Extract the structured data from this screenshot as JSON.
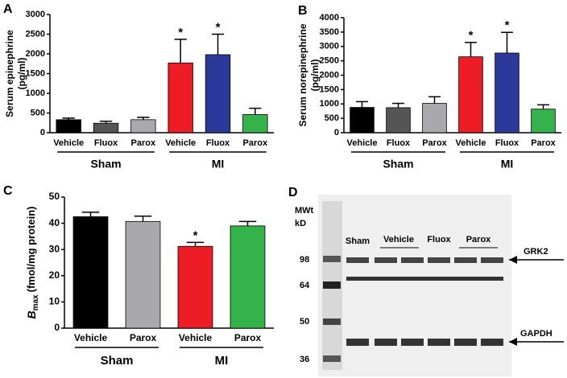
{
  "chart_data": [
    {
      "type": "bar",
      "panel": "A",
      "y_label": [
        "Serum epinephrine",
        "(pg/ml)"
      ],
      "categories": [
        "Vehicle",
        "Fluox",
        "Parox",
        "Vehicle",
        "Fluox",
        "Parox"
      ],
      "group_labels": [
        "Sham",
        "MI"
      ],
      "values": [
        330,
        240,
        330,
        1770,
        1980,
        460
      ],
      "errors": [
        40,
        50,
        60,
        600,
        520,
        160
      ],
      "annotations": [
        null,
        null,
        null,
        "*",
        "*",
        null
      ],
      "colors": [
        "#000000",
        "#555555",
        "#a9a9ad",
        "#ee1c25",
        "#2b3a9a",
        "#33b34a"
      ],
      "ylim": [
        0,
        3000
      ],
      "yticks": [
        0,
        500,
        1000,
        1500,
        2000,
        2500,
        3000
      ]
    },
    {
      "type": "bar",
      "panel": "B",
      "y_label": [
        "Serum norepinephrine",
        "(pg/ml)"
      ],
      "categories": [
        "Vehicle",
        "Fluox",
        "Parox",
        "Vehicle",
        "Fluox",
        "Parox"
      ],
      "group_labels": [
        "Sham",
        "MI"
      ],
      "values": [
        880,
        870,
        1020,
        2640,
        2770,
        820
      ],
      "errors": [
        200,
        150,
        230,
        500,
        720,
        150
      ],
      "annotations": [
        null,
        null,
        null,
        "*",
        "*",
        null
      ],
      "colors": [
        "#000000",
        "#555555",
        "#a9a9ad",
        "#ee1c25",
        "#2b3a9a",
        "#33b34a"
      ],
      "ylim": [
        0,
        4000
      ],
      "yticks": [
        0,
        500,
        1000,
        1500,
        2000,
        2500,
        3000,
        3500,
        4000
      ]
    },
    {
      "type": "bar",
      "panel": "C",
      "y_label_parts": [
        "B",
        "max",
        "(fmol/mg protein)"
      ],
      "categories": [
        "Vehicle",
        "Parox",
        "Vehicle",
        "Parox"
      ],
      "group_labels": [
        "Sham",
        "MI"
      ],
      "values": [
        42.5,
        40.7,
        31.2,
        39.0
      ],
      "errors": [
        1.7,
        2.0,
        1.5,
        1.7
      ],
      "annotations": [
        null,
        null,
        "*",
        null
      ],
      "colors": [
        "#000000",
        "#a9a9ad",
        "#ee1c25",
        "#33b34a"
      ],
      "ylim": [
        0,
        50
      ],
      "yticks": [
        0,
        10,
        20,
        30,
        40,
        50
      ]
    }
  ],
  "blot": {
    "panel": "D",
    "mw_title": [
      "MWt",
      "kD"
    ],
    "markers": [
      "98",
      "64",
      "50",
      "36"
    ],
    "lanes": [
      "Sham",
      "Vehicle",
      "Fluox",
      "Parox"
    ],
    "bands": [
      "GRK2",
      "GAPDH"
    ]
  }
}
